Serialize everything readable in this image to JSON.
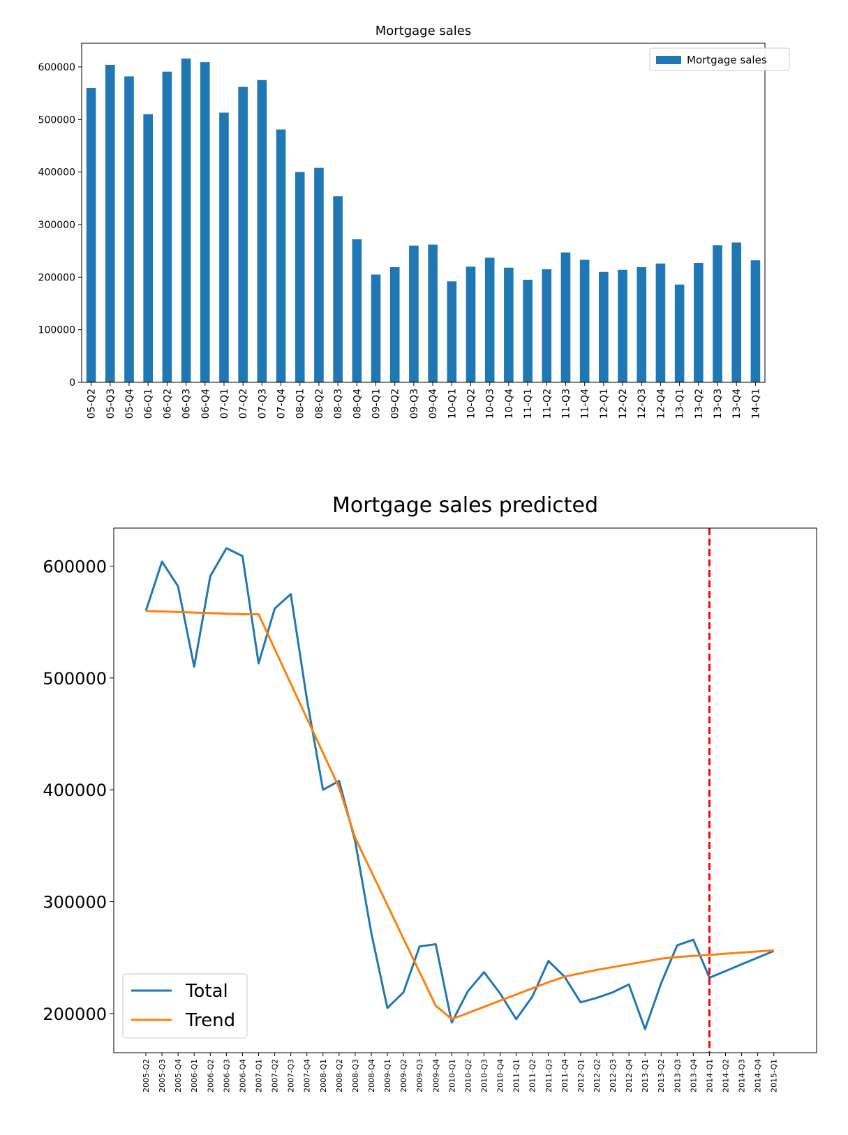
{
  "chart_data": [
    {
      "type": "bar",
      "title": "Mortgage sales",
      "xlabel": "",
      "ylabel": "",
      "categories": [
        "05-Q2",
        "05-Q3",
        "05-Q4",
        "06-Q1",
        "06-Q2",
        "06-Q3",
        "06-Q4",
        "07-Q1",
        "07-Q2",
        "07-Q3",
        "07-Q4",
        "08-Q1",
        "08-Q2",
        "08-Q3",
        "08-Q4",
        "09-Q1",
        "09-Q2",
        "09-Q3",
        "09-Q4",
        "10-Q1",
        "10-Q2",
        "10-Q3",
        "10-Q4",
        "11-Q1",
        "11-Q2",
        "11-Q3",
        "11-Q4",
        "12-Q1",
        "12-Q2",
        "12-Q3",
        "12-Q4",
        "13-Q1",
        "13-Q2",
        "13-Q3",
        "13-Q4",
        "14-Q1"
      ],
      "series": [
        {
          "name": "Mortgage sales",
          "color": "#1f77b4",
          "values": [
            560000,
            604000,
            582000,
            510000,
            591000,
            616000,
            609000,
            513000,
            562000,
            575000,
            481000,
            400000,
            408000,
            354000,
            272000,
            205000,
            219000,
            260000,
            262000,
            192000,
            220000,
            237000,
            218000,
            195000,
            215000,
            247000,
            233000,
            210000,
            214000,
            219000,
            226000,
            186000,
            227000,
            261000,
            266000,
            232000
          ]
        }
      ],
      "ylim": [
        0,
        645000
      ],
      "yticks": [
        0,
        100000,
        200000,
        300000,
        400000,
        500000,
        600000
      ],
      "legend": "top-right",
      "grid": false
    },
    {
      "type": "line",
      "title": "Mortgage sales predicted",
      "xlabel": "",
      "ylabel": "",
      "x": [
        "2005-Q2",
        "2005-Q3",
        "2005-Q4",
        "2006-Q1",
        "2006-Q2",
        "2006-Q3",
        "2006-Q4",
        "2007-Q1",
        "2007-Q2",
        "2007-Q3",
        "2007-Q4",
        "2008-Q1",
        "2008-Q2",
        "2008-Q3",
        "2008-Q4",
        "2009-Q1",
        "2009-Q2",
        "2009-Q3",
        "2009-Q4",
        "2010-Q1",
        "2010-Q2",
        "2010-Q3",
        "2010-Q4",
        "2011-Q1",
        "2011-Q2",
        "2011-Q3",
        "2011-Q4",
        "2012-Q1",
        "2012-Q2",
        "2012-Q3",
        "2012-Q4",
        "2013-Q1",
        "2013-Q2",
        "2013-Q3",
        "2013-Q4",
        "2014-Q1",
        "2014-Q2",
        "2014-Q3",
        "2014-Q4",
        "2015-Q1"
      ],
      "series": [
        {
          "name": "Total",
          "color": "#1f77b4",
          "values": [
            560000,
            604000,
            582000,
            510000,
            591000,
            616000,
            609000,
            513000,
            562000,
            575000,
            481000,
            400000,
            408000,
            354000,
            272000,
            205000,
            219000,
            260000,
            262000,
            192000,
            220000,
            237000,
            218000,
            195000,
            215000,
            247000,
            233000,
            210000,
            214000,
            219000,
            226000,
            186000,
            227000,
            261000,
            266000,
            232000,
            238000,
            244000,
            250000,
            256000
          ]
        },
        {
          "name": "Trend",
          "color": "#ff7f0e",
          "values": [
            560000,
            559500,
            559000,
            558500,
            558000,
            557500,
            557000,
            557000,
            526000,
            495000,
            464000,
            433000,
            402000,
            357000,
            327000,
            297000,
            267000,
            237000,
            207000,
            195000,
            200500,
            206000,
            211500,
            217000,
            222500,
            228000,
            233000,
            236000,
            239000,
            241500,
            244000,
            246500,
            249000,
            250500,
            251500,
            252500,
            253500,
            254500,
            255500,
            256500
          ]
        }
      ],
      "ylim": [
        165000,
        634000
      ],
      "yticks": [
        200000,
        300000,
        400000,
        500000,
        600000
      ],
      "vline": {
        "x": "2014-Q1",
        "color": "#ff0000",
        "style": "dashed"
      },
      "legend": "lower-left",
      "grid": false
    }
  ]
}
